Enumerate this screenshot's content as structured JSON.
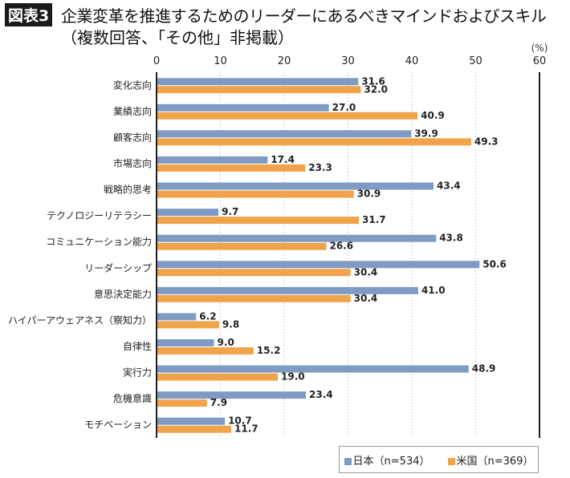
{
  "badge": "図表3",
  "title": "企業変革を推進するためのリーダーにあるべきマインドおよびスキル",
  "subtitle": "（複数回答、「その他」非掲載）",
  "chart_data": {
    "type": "bar",
    "orientation": "horizontal",
    "unit_label": "(%)",
    "xlim": [
      0,
      60
    ],
    "ticks": [
      "0",
      "10",
      "20",
      "30",
      "40",
      "50",
      "60"
    ],
    "grid": true,
    "legend_position": "bottom-right",
    "categories": [
      "変化志向",
      "業績志向",
      "顧客志向",
      "市場志向",
      "戦略的思考",
      "テクノロジーリテラシー",
      "コミュニケーション能力",
      "リーダーシップ",
      "意思決定能力",
      "ハイパーアウェアネス（察知力）",
      "自律性",
      "実行力",
      "危機意識",
      "モチベーション"
    ],
    "series": [
      {
        "name": "日本（n=534）",
        "color": "#7f9bc3",
        "values": [
          31.6,
          27.0,
          39.9,
          17.4,
          43.4,
          9.7,
          43.8,
          50.6,
          41.0,
          6.2,
          9.0,
          48.9,
          23.4,
          10.7
        ]
      },
      {
        "name": "米国（n=369）",
        "color": "#f0a34a",
        "values": [
          32.0,
          40.9,
          49.3,
          23.3,
          30.9,
          31.7,
          26.6,
          30.4,
          30.4,
          9.8,
          15.2,
          19.0,
          7.9,
          11.7
        ]
      }
    ]
  }
}
